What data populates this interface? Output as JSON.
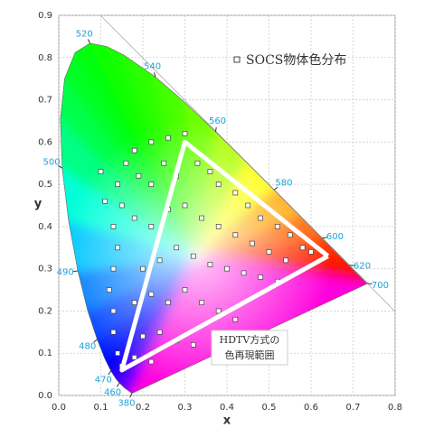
{
  "chart_data": {
    "type": "scatter",
    "xlabel": "x",
    "ylabel": "y",
    "xlim": [
      0,
      0.8
    ],
    "ylim": [
      0,
      0.9
    ],
    "xticks": [
      {
        "value": 0,
        "label": "0.0"
      },
      0.1,
      0.2,
      0.3,
      0.4,
      0.5,
      0.6,
      0.7,
      0.8
    ],
    "yticks": [
      {
        "value": 0,
        "label": "0.0"
      },
      0.1,
      0.2,
      0.3,
      0.4,
      0.5,
      0.6,
      0.7,
      0.8,
      0.9
    ],
    "grid": true,
    "series": [
      {
        "name": "SOCS物体色分布",
        "color": "#ffffff",
        "x": [
          0.16,
          0.18,
          0.22,
          0.26,
          0.3,
          0.14,
          0.15,
          0.13,
          0.14,
          0.13,
          0.12,
          0.13,
          0.13,
          0.14,
          0.15,
          0.19,
          0.22,
          0.25,
          0.28,
          0.33,
          0.36,
          0.38,
          0.42,
          0.45,
          0.48,
          0.52,
          0.55,
          0.58,
          0.6,
          0.18,
          0.22,
          0.26,
          0.3,
          0.34,
          0.38,
          0.42,
          0.46,
          0.5,
          0.54,
          0.2,
          0.24,
          0.28,
          0.32,
          0.36,
          0.4,
          0.44,
          0.48,
          0.52,
          0.18,
          0.22,
          0.26,
          0.3,
          0.34,
          0.38,
          0.42,
          0.2,
          0.24,
          0.28,
          0.32,
          0.18,
          0.22,
          0.1,
          0.11
        ],
        "values": [
          0.55,
          0.58,
          0.6,
          0.61,
          0.62,
          0.5,
          0.45,
          0.4,
          0.35,
          0.3,
          0.25,
          0.2,
          0.15,
          0.1,
          0.07,
          0.52,
          0.5,
          0.55,
          0.52,
          0.55,
          0.53,
          0.5,
          0.48,
          0.45,
          0.42,
          0.4,
          0.38,
          0.35,
          0.34,
          0.42,
          0.4,
          0.44,
          0.45,
          0.42,
          0.4,
          0.38,
          0.36,
          0.34,
          0.32,
          0.3,
          0.32,
          0.35,
          0.33,
          0.31,
          0.3,
          0.29,
          0.28,
          0.27,
          0.22,
          0.24,
          0.22,
          0.25,
          0.22,
          0.2,
          0.18,
          0.14,
          0.15,
          0.13,
          0.12,
          0.09,
          0.08,
          0.53,
          0.46
        ]
      }
    ],
    "spectral_locus": {
      "x": [
        0.1741,
        0.1566,
        0.144,
        0.1355,
        0.1241,
        0.1096,
        0.0913,
        0.0687,
        0.0454,
        0.0235,
        0.0082,
        0.0039,
        0.0139,
        0.0389,
        0.0743,
        0.1142,
        0.1547,
        0.2296,
        0.3016,
        0.3731,
        0.4441,
        0.5125,
        0.5752,
        0.627,
        0.6658,
        0.6915,
        0.719,
        0.7347
      ],
      "values": [
        0.005,
        0.0177,
        0.0297,
        0.0399,
        0.0578,
        0.0868,
        0.1327,
        0.2007,
        0.295,
        0.4127,
        0.5384,
        0.6548,
        0.7502,
        0.812,
        0.8338,
        0.8262,
        0.8059,
        0.7543,
        0.6923,
        0.6245,
        0.5547,
        0.4866,
        0.4242,
        0.3725,
        0.334,
        0.3083,
        0.2809,
        0.2653
      ],
      "labels": [
        380,
        null,
        460,
        null,
        470,
        null,
        480,
        null,
        490,
        null,
        500,
        null,
        null,
        null,
        520,
        null,
        null,
        540,
        null,
        560,
        null,
        580,
        null,
        600,
        null,
        620,
        null,
        700
      ],
      "label_color": "#1aa3d9"
    },
    "gamut": {
      "x": [
        0.64,
        0.3,
        0.15,
        0.64
      ],
      "values": [
        0.33,
        0.6,
        0.06,
        0.33
      ],
      "color": "#ffffff"
    },
    "annotation": [
      "HDTV方式の",
      "色再現範囲"
    ]
  }
}
